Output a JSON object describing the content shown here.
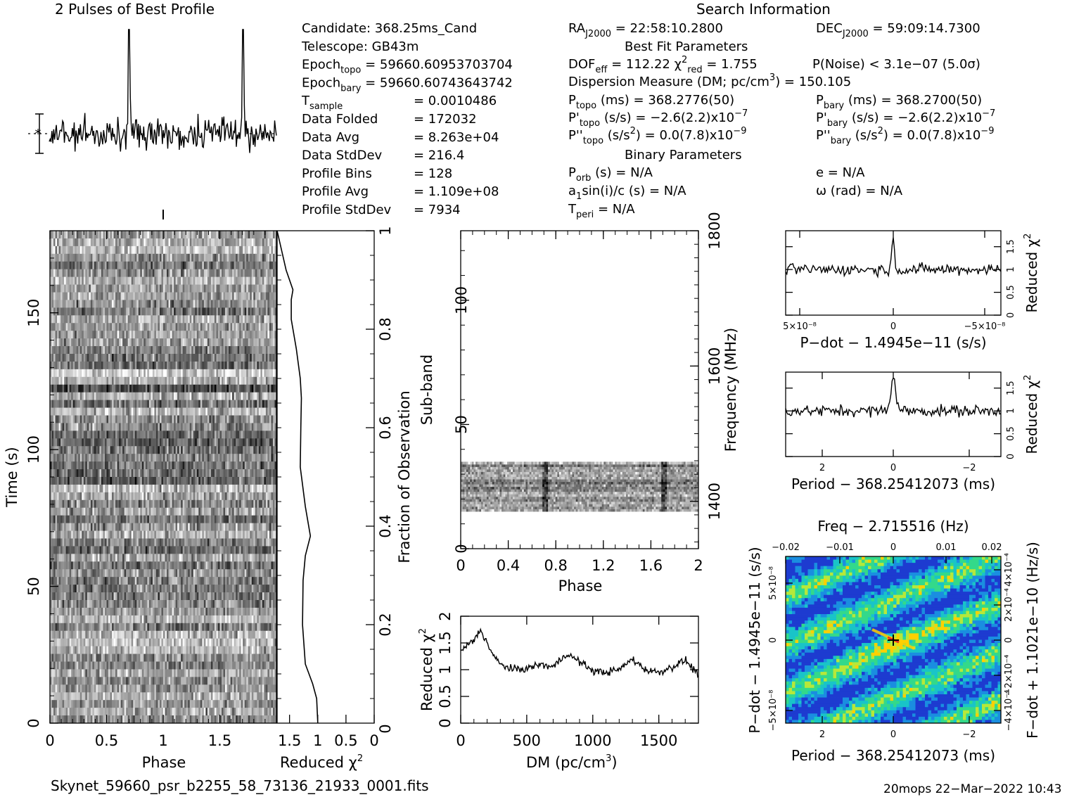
{
  "header": {
    "profile_title": "2 Pulses of Best Profile",
    "search_title": "Search Information",
    "fit_title": "Best Fit Parameters",
    "binary_title": "Binary Parameters"
  },
  "info_left": [
    {
      "label": "Candidate:  368.25ms_Cand",
      "value": ""
    },
    {
      "label": "Telescope:  GB43m",
      "value": ""
    },
    {
      "label": "Epoch",
      "sub": "topo",
      "value": "= 59660.60953703704"
    },
    {
      "label": "Epoch",
      "sub": "bary",
      "value": "= 59660.60743643742"
    },
    {
      "label": "T",
      "sub": "sample",
      "value": "=  0.0010486"
    },
    {
      "label": "Data Folded",
      "value": "=  172032"
    },
    {
      "label": "Data Avg",
      "value": "=  8.263e+04"
    },
    {
      "label": "Data StdDev",
      "value": "=  216.4"
    },
    {
      "label": "Profile Bins",
      "value": "=  128"
    },
    {
      "label": "Profile Avg",
      "value": "=  1.109e+08"
    },
    {
      "label": "Profile StdDev",
      "value": "=  7934"
    }
  ],
  "info_mid": {
    "ra": "= 22:58:10.2800",
    "dof": "= 112.22",
    "chi2": "= 1.755",
    "dm": "Dispersion Measure (DM; pc/cm",
    "dm_value": ") = 150.105",
    "p_topo": "(ms) =  368.2776(50)",
    "pd_topo": "(s/s) = −2.6(2.2)x10",
    "pd_topo_exp": "−7",
    "pdd_topo": "(s/s",
    "pdd_topo_value": ") = 0.0(7.8)x10",
    "pdd_topo_exp": "−9",
    "p_orb": "(s) = N/A",
    "a1sini": "sin(i)/c (s) = N/A",
    "t_peri": "= N/A"
  },
  "info_right": {
    "dec": "= 59:09:14.7300",
    "pnoise": "P(Noise) < 3.1e−07  (5.0σ)",
    "p_bary": "(ms) =  368.2700(50)",
    "pd_bary": "(s/s) = −2.6(2.2)x10",
    "pd_bary_exp": "−7",
    "pdd_bary": "(s/s",
    "pdd_bary_value": ") = 0.0(7.8)x10",
    "pdd_bary_exp": "−9",
    "ecc": "e = N/A",
    "omega": "ω (rad) = N/A"
  },
  "footer": {
    "filename": "Skynet_59660_psr_b2255_58_73136_21933_0001.fits",
    "stamp": "20mops 22−Mar−2022 10:43"
  },
  "colors": {
    "ink": "#000000",
    "map_low": "#1a3fd6",
    "map_mid": "#19c7c7",
    "map_high": "#ffdd00"
  },
  "chart_data": [
    {
      "name": "pulse-profile",
      "type": "line",
      "title": "2 Pulses of Best Profile",
      "xlim": [
        0,
        2
      ],
      "peaks_phase": [
        0.7,
        1.7
      ],
      "description_values": {
        "bins": 128,
        "pulses": 2
      }
    },
    {
      "name": "time-vs-phase",
      "type": "heatmap",
      "xlabel": "Phase",
      "ylabel": "Time (s)",
      "xticks": [
        "0",
        "0.5",
        "1",
        "1.5"
      ],
      "yticks": [
        "0",
        "50",
        "100",
        "150"
      ],
      "xlim": [
        0,
        2
      ],
      "ylim": [
        0,
        180
      ]
    },
    {
      "name": "reduced-chi2-vs-time",
      "type": "line",
      "xlabel": "Reduced χ",
      "ylabel": "Fraction of Observation",
      "xticks": [
        "1.5",
        "1",
        "0.5",
        "0"
      ],
      "yticks": [
        "0.2",
        "0.4",
        "0.6",
        "0.8",
        "1"
      ],
      "x": [
        1.0,
        1.02,
        1.09,
        1.22,
        1.27,
        1.26,
        1.22,
        1.13,
        1.22,
        1.31,
        1.3,
        1.29,
        1.31,
        1.38,
        1.47,
        1.47,
        1.44,
        1.56,
        1.64,
        1.72
      ],
      "y": [
        0.0,
        0.05,
        0.08,
        0.12,
        0.2,
        0.29,
        0.34,
        0.38,
        0.44,
        0.52,
        0.6,
        0.66,
        0.7,
        0.76,
        0.82,
        0.86,
        0.88,
        0.92,
        0.96,
        1.0
      ]
    },
    {
      "name": "subband-vs-phase",
      "type": "heatmap",
      "xlabel": "Phase",
      "ylabel": "Sub-band",
      "y2label": "Frequency (MHz)",
      "xticks": [
        "0",
        "0.4",
        "0.8",
        "1.2",
        "1.6",
        "2"
      ],
      "yticks": [
        "0",
        "50",
        "100"
      ],
      "y2ticks": [
        "1400",
        "1600",
        "1800"
      ],
      "xlim": [
        0,
        2
      ],
      "ylim": [
        0,
        128
      ],
      "active_subbands": [
        15,
        35
      ]
    },
    {
      "name": "reduced-chi2-vs-dm",
      "type": "line",
      "xlabel": "DM (pc/cm",
      "ylabel": "Reduced χ",
      "xticks": [
        "0",
        "500",
        "1000",
        "1500"
      ],
      "yticks": [
        "0",
        "0.5",
        "1",
        "1.5",
        "2"
      ],
      "xlim": [
        0,
        1800
      ],
      "ylim": [
        0,
        2
      ],
      "x": [
        0,
        50,
        100,
        150,
        200,
        250,
        300,
        400,
        500,
        600,
        700,
        800,
        900,
        1000,
        1100,
        1200,
        1300,
        1400,
        1500,
        1600,
        1700,
        1800
      ],
      "y": [
        1.35,
        1.45,
        1.55,
        1.75,
        1.5,
        1.25,
        1.1,
        1.0,
        1.02,
        1.1,
        1.05,
        1.3,
        1.15,
        0.98,
        0.95,
        1.0,
        1.2,
        1.0,
        0.95,
        1.05,
        1.18,
        0.9
      ]
    },
    {
      "name": "reduced-chi2-vs-pdot",
      "type": "line",
      "xlabel": "P−dot − 1.4945e−11 (s/s)",
      "ylabel": "Reduced χ",
      "xticks": [
        "5×10⁻⁸",
        "0",
        "−5×10⁻⁸"
      ],
      "yticks": [
        "0",
        "0.5",
        "1",
        "1.5"
      ],
      "ylim": [
        0,
        1.85
      ],
      "peak": {
        "x": 0,
        "y": 1.7
      },
      "baseline": 1.0
    },
    {
      "name": "reduced-chi2-vs-period",
      "type": "line",
      "xlabel": "Period − 368.25412073 (ms)",
      "ylabel": "Reduced χ",
      "xticks": [
        "2",
        "0",
        "−2"
      ],
      "yticks": [
        "0",
        "0.5",
        "1",
        "1.5"
      ],
      "ylim": [
        0,
        1.85
      ],
      "peak": {
        "x": 0,
        "y": 1.72
      },
      "baseline": 1.0
    },
    {
      "name": "pdot-vs-period-map",
      "type": "heatmap",
      "title": "Freq − 2.715516 (Hz)",
      "xlabel": "Period − 368.25412073 (ms)",
      "ylabel": "P−dot − 1.4945e−11 (s/s)",
      "y2label": "F−dot + 1.1021e−10 (Hz/s)",
      "xticks": [
        "2",
        "0",
        "−2"
      ],
      "x2ticks": [
        "−0.02",
        "−0.01",
        "0",
        "0.01",
        "0.02"
      ],
      "yticks": [
        "5×10⁻⁸",
        "0",
        "−5×10⁻⁸"
      ],
      "y2ticks": [
        "−4×10⁻⁴",
        "−2×10⁻⁴",
        "0",
        "2×10⁻⁴",
        "4×10⁻⁴"
      ]
    }
  ]
}
